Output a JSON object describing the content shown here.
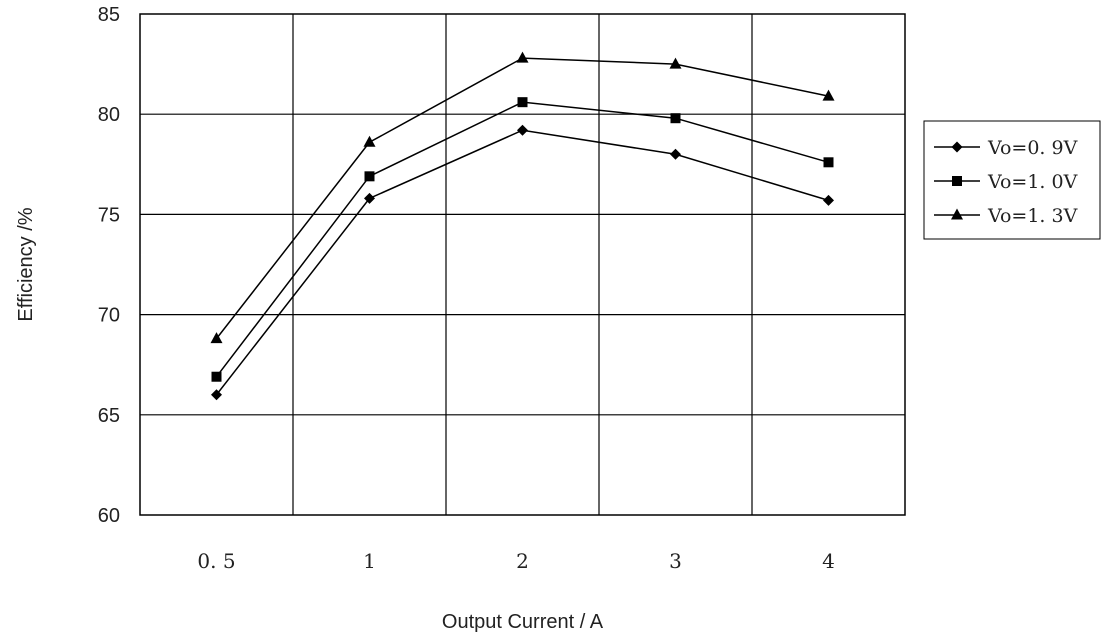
{
  "chart_data": {
    "type": "line",
    "title": "",
    "xlabel": "Output Current / A",
    "ylabel": "Efficiency /%",
    "categories": [
      "0. 5",
      "1",
      "2",
      "3",
      "4"
    ],
    "ylim": [
      60,
      85
    ],
    "yticks": [
      60,
      65,
      70,
      75,
      80,
      85
    ],
    "grid": true,
    "legend_position": "right",
    "series": [
      {
        "name": "Vo=0. 9V",
        "marker": "diamond",
        "values": [
          66.0,
          75.8,
          79.2,
          78.0,
          75.7
        ]
      },
      {
        "name": "Vo=1. 0V",
        "marker": "square",
        "values": [
          66.9,
          76.9,
          80.6,
          79.8,
          77.6
        ]
      },
      {
        "name": "Vo=1. 3V",
        "marker": "triangle",
        "values": [
          68.8,
          78.6,
          82.8,
          82.5,
          80.9
        ]
      }
    ],
    "line_color": "#000000",
    "grid_color": "#000000"
  }
}
